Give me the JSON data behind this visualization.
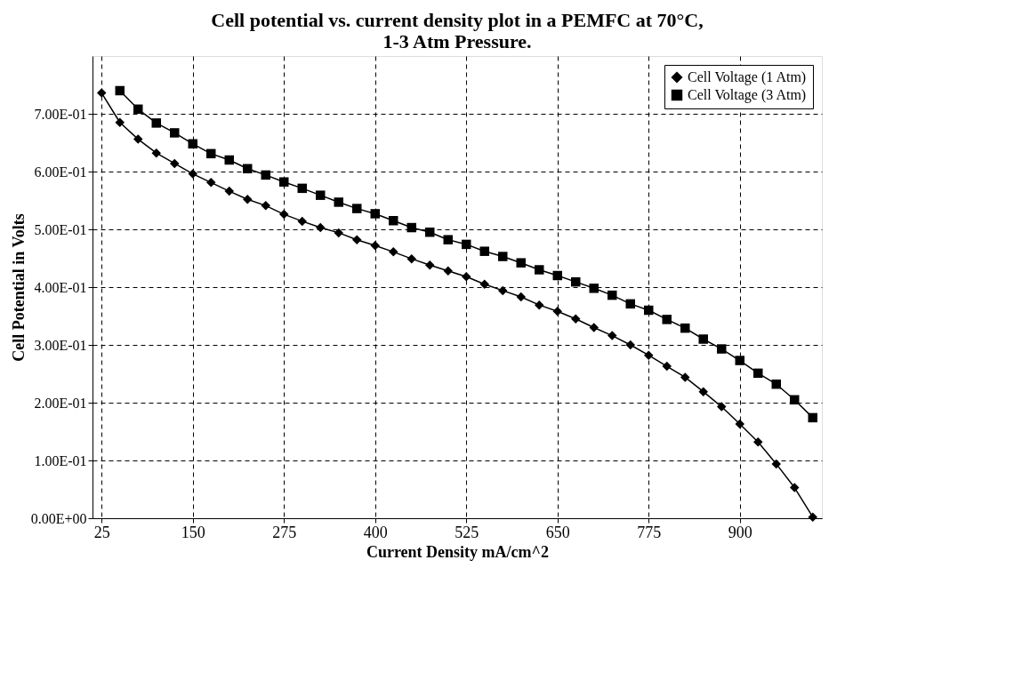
{
  "chart_data": {
    "type": "line",
    "title": "Cell potential vs. current density plot in a PEMFC at 70°C,\n1-3 Atm Pressure.",
    "xlabel": "Current Density mA/cm^2",
    "ylabel": "Cell Potential in Volts",
    "categories": [
      "25",
      null,
      null,
      null,
      null,
      "150",
      null,
      null,
      null,
      null,
      "275",
      null,
      null,
      null,
      null,
      "400",
      null,
      null,
      null,
      null,
      "525",
      null,
      null,
      null,
      null,
      "650",
      null,
      null,
      null,
      null,
      "775",
      null,
      null,
      null,
      null,
      "900",
      null,
      null,
      null,
      null
    ],
    "series": [
      {
        "name": "Cell Voltage (1 Atm)",
        "color": "#000000",
        "marker": "diamond",
        "values": [
          0.736,
          0.685,
          0.656,
          0.632,
          0.614,
          0.596,
          0.581,
          0.566,
          0.552,
          0.541,
          0.526,
          0.514,
          0.503,
          0.494,
          0.482,
          0.472,
          0.461,
          0.449,
          0.438,
          0.428,
          0.418,
          0.405,
          0.394,
          0.383,
          0.369,
          0.358,
          0.345,
          0.33,
          0.316,
          0.3,
          0.282,
          0.263,
          0.244,
          0.219,
          0.193,
          0.163,
          0.132,
          0.094,
          0.053,
          0.002
        ]
      },
      {
        "name": "Cell Voltage (3 Atm)",
        "color": "#000000",
        "marker": "square",
        "values": [
          null,
          0.74,
          0.708,
          0.684,
          0.667,
          0.648,
          0.631,
          0.62,
          0.605,
          0.594,
          0.582,
          0.571,
          0.559,
          0.547,
          0.536,
          0.527,
          0.515,
          0.503,
          0.495,
          0.482,
          0.474,
          0.462,
          0.453,
          0.442,
          0.43,
          0.42,
          0.409,
          0.398,
          0.386,
          0.371,
          0.36,
          0.344,
          0.329,
          0.31,
          0.293,
          0.273,
          0.251,
          0.232,
          0.205,
          0.174
        ]
      }
    ],
    "ylim": [
      0,
      0.8
    ],
    "yticks": [
      {
        "value": 0,
        "label": "0.00E+00"
      },
      {
        "value": 0.1,
        "label": "1.00E-01"
      },
      {
        "value": 0.2,
        "label": "2.00E-01"
      },
      {
        "value": 0.3,
        "label": "3.00E-01"
      },
      {
        "value": 0.4,
        "label": "4.00E-01"
      },
      {
        "value": 0.5,
        "label": "5.00E-01"
      },
      {
        "value": 0.6,
        "label": "6.00E-01"
      },
      {
        "value": 0.7,
        "label": "7.00E-01"
      }
    ],
    "grid": true,
    "legend": "top right"
  }
}
